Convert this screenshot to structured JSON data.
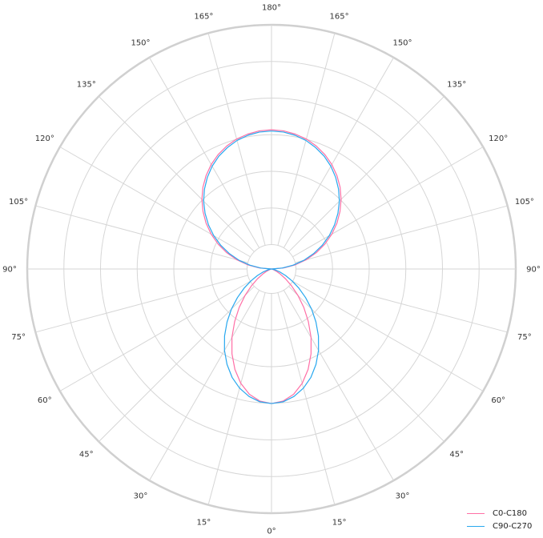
{
  "chart_data": {
    "type": "polar-line",
    "title": "",
    "angle_unit": "degrees",
    "angle_ticks": [
      0,
      15,
      30,
      45,
      60,
      75,
      90,
      105,
      120,
      135,
      150,
      165,
      180
    ],
    "angle_tick_suffix": "°",
    "angle_layout": "0° at bottom, 180° at top, mirrored on left and right halves",
    "radial_gridlines": [
      10,
      25,
      40,
      55,
      70,
      85,
      100
    ],
    "rlim": [
      0,
      100
    ],
    "radial_tick_labels_shown": false,
    "grid": true,
    "legend_position": "bottom-right",
    "gamma": [
      0,
      5,
      10,
      15,
      20,
      25,
      30,
      35,
      40,
      45,
      50,
      55,
      60,
      65,
      70,
      75,
      80,
      85,
      90,
      95,
      100,
      105,
      110,
      115,
      120,
      125,
      130,
      135,
      140,
      145,
      150,
      155,
      160,
      165,
      170,
      175,
      180
    ],
    "series": [
      {
        "name": "C0-C180",
        "color": "#ff6fa6",
        "values": [
          55.1,
          54.3,
          52.1,
          48.5,
          43.8,
          38.3,
          32.4,
          26.3,
          20.6,
          15.3,
          10.7,
          7.0,
          4.2,
          2.3,
          1.0,
          0.4,
          0.1,
          0,
          0,
          5.0,
          9.9,
          14.8,
          19.5,
          24.1,
          28.5,
          32.7,
          36.6,
          40.3,
          43.7,
          46.7,
          49.4,
          51.7,
          53.6,
          55.1,
          56.1,
          56.8,
          57.0
        ]
      },
      {
        "name": "C90-C270",
        "color": "#29a8ef",
        "values": [
          55.1,
          54.6,
          53.0,
          50.5,
          47.2,
          43.1,
          38.5,
          33.5,
          28.3,
          23.2,
          18.2,
          13.7,
          9.7,
          6.4,
          3.8,
          1.9,
          0.7,
          0.1,
          0,
          4.4,
          9.0,
          13.7,
          18.3,
          22.9,
          27.3,
          31.5,
          35.5,
          39.3,
          42.7,
          45.8,
          48.6,
          51.0,
          52.9,
          54.5,
          55.6,
          56.3,
          56.5
        ]
      }
    ]
  }
}
